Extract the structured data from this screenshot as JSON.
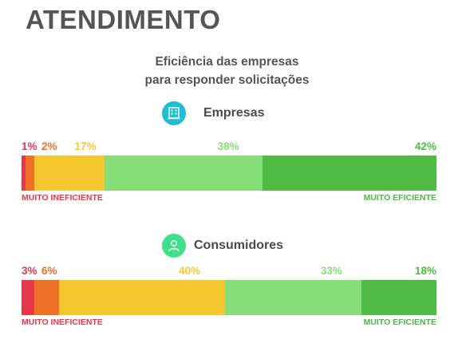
{
  "title": "ATENDIMENTO",
  "subtitle": [
    "Eficiência das empresas",
    "para responder solicitações"
  ],
  "colors": [
    "#e8374a",
    "#ef7125",
    "#f4c72f",
    "#87de78",
    "#4fbb45"
  ],
  "chart_data": [
    {
      "type": "bar",
      "stacked": true,
      "orientation": "horizontal",
      "title": "Empresas",
      "icon": "building-icon",
      "categories": [
        "1",
        "2",
        "3",
        "4",
        "5"
      ],
      "values": [
        1,
        2,
        17,
        38,
        42
      ],
      "labels": [
        "1%",
        "2%",
        "17%",
        "38%",
        "42%"
      ],
      "left_label": "MUITO INEFICIENTE",
      "right_label": "MUITO EFICIENTE"
    },
    {
      "type": "bar",
      "stacked": true,
      "orientation": "horizontal",
      "title": "Consumidores",
      "icon": "person-icon",
      "categories": [
        "1",
        "2",
        "3",
        "4",
        "5"
      ],
      "values": [
        3,
        6,
        40,
        33,
        18
      ],
      "labels": [
        "3%",
        "6%",
        "40%",
        "33%",
        "18%"
      ],
      "left_label": "MUITO INEFICIENTE",
      "right_label": "MUITO EFICIENTE"
    }
  ]
}
